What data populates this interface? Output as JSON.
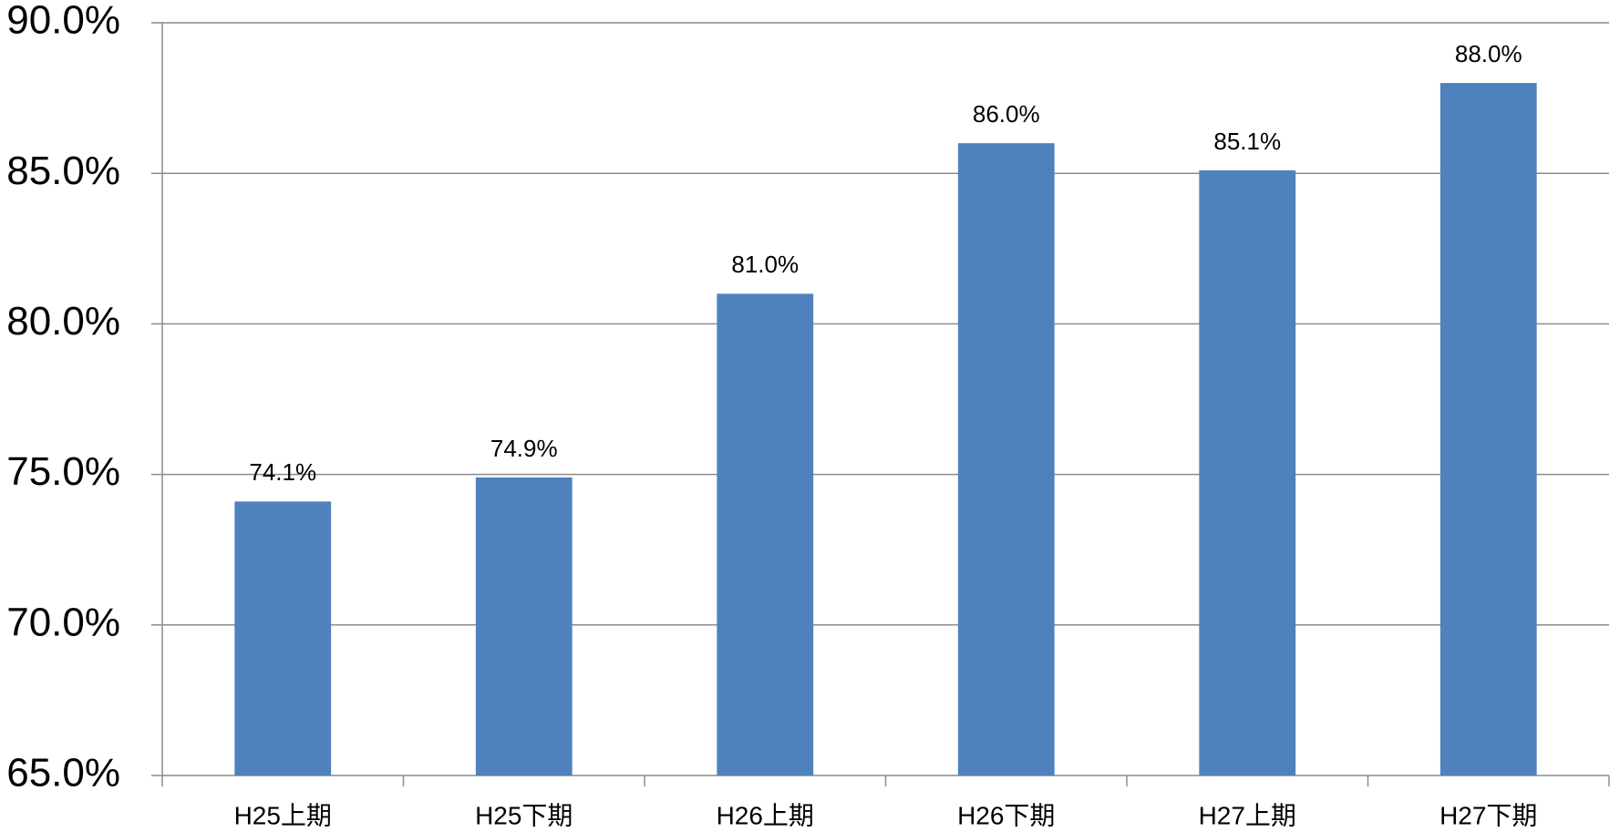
{
  "chart_data": {
    "type": "bar",
    "categories": [
      "H25上期",
      "H25下期",
      "H26上期",
      "H26下期",
      "H27上期",
      "H27下期"
    ],
    "values": [
      74.1,
      74.9,
      81.0,
      86.0,
      85.1,
      88.0
    ],
    "value_labels": [
      "74.1%",
      "74.9%",
      "81.0%",
      "86.0%",
      "85.1%",
      "88.0%"
    ],
    "color": "#4f81bd",
    "ylim": [
      65,
      90
    ],
    "yticks": [
      {
        "value": 65,
        "label": "65.0%"
      },
      {
        "value": 70,
        "label": "70.0%"
      },
      {
        "value": 75,
        "label": "75.0%"
      },
      {
        "value": 80,
        "label": "80.0%"
      },
      {
        "value": 85,
        "label": "85.0%"
      },
      {
        "value": 90,
        "label": "90.0%"
      }
    ],
    "grid": true
  }
}
